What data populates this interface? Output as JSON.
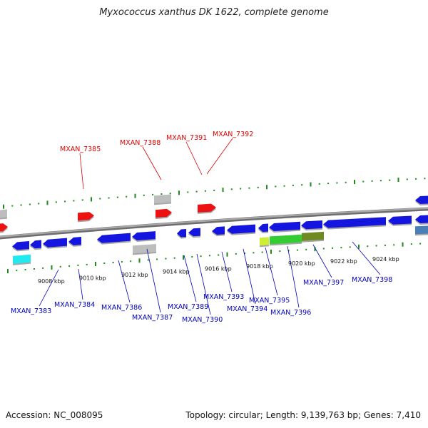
{
  "title": "Myxococcus xanthus DK 1622, complete genome",
  "footer": {
    "accession": "Accession: NC_008095",
    "summary": "Topology: circular; Length: 9,139,763 bp; Genes: 7,410"
  },
  "colors": {
    "backbone": "#8a8a8a",
    "tick": "#1f8a1f",
    "forward_label": "#dd0000",
    "reverse_label": "#0000bb",
    "gene_blue": "#1515e0",
    "gene_red": "#ee1111",
    "gene_grey": "#bdbdbd",
    "gene_cyan": "#22e8f0",
    "gene_green": "#33cc33",
    "gene_olive": "#6f8a22",
    "gene_lime": "#ccee33",
    "gene_steel": "#4a7fb8"
  },
  "ticks": [
    {
      "label": "9008 kbp"
    },
    {
      "label": "9010 kbp"
    },
    {
      "label": "9012 kbp"
    },
    {
      "label": "9014 kbp"
    },
    {
      "label": "9016 kbp"
    },
    {
      "label": "9018 kbp"
    },
    {
      "label": "9020 kbp"
    },
    {
      "label": "9022 kbp"
    },
    {
      "label": "9024 kbp"
    }
  ],
  "forward_labels": [
    "MXAN_7385",
    "MXAN_7388",
    "MXAN_7391",
    "MXAN_7392"
  ],
  "reverse_labels": [
    "MXAN_7383",
    "MXAN_7384",
    "MXAN_7386",
    "MXAN_7387",
    "MXAN_7389",
    "MXAN_7390",
    "MXAN_7393",
    "MXAN_7394",
    "MXAN_7395",
    "MXAN_7396",
    "MXAN_7397",
    "MXAN_7398"
  ]
}
